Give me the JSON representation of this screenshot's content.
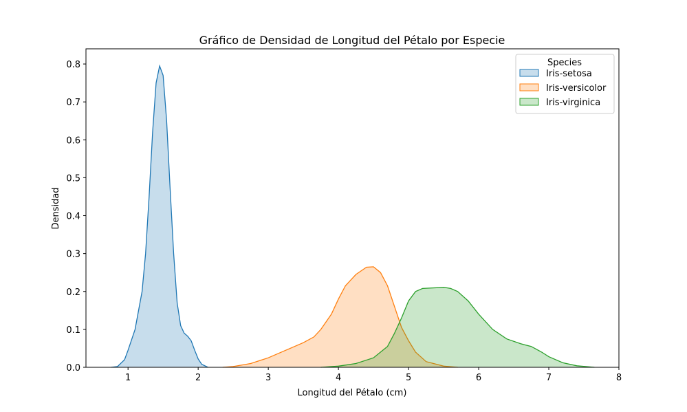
{
  "chart_data": {
    "type": "area",
    "title": "Gráfico de Densidad de Longitud del Pétalo por Especie",
    "xlabel": "Longitud del Pétalo (cm)",
    "ylabel": "Densidad",
    "xlim": [
      0.4,
      8.0
    ],
    "ylim": [
      0,
      0.84
    ],
    "xticks": [
      1,
      2,
      3,
      4,
      5,
      6,
      7,
      8
    ],
    "yticks": [
      0.0,
      0.1,
      0.2,
      0.3,
      0.4,
      0.5,
      0.6,
      0.7,
      0.8
    ],
    "xtick_labels": [
      "1",
      "2",
      "3",
      "4",
      "5",
      "6",
      "7",
      "8"
    ],
    "ytick_labels": [
      "0.0",
      "0.1",
      "0.2",
      "0.3",
      "0.4",
      "0.5",
      "0.6",
      "0.7",
      "0.8"
    ],
    "grid": false,
    "legend": {
      "title": "Species",
      "placement": "top-right"
    },
    "series": [
      {
        "name": "Iris-setosa",
        "color": "#1f77b4",
        "points": [
          [
            0.76,
            0
          ],
          [
            0.85,
            0.002
          ],
          [
            0.95,
            0.02
          ],
          [
            1.0,
            0.045
          ],
          [
            1.1,
            0.1
          ],
          [
            1.2,
            0.2
          ],
          [
            1.25,
            0.3
          ],
          [
            1.3,
            0.45
          ],
          [
            1.35,
            0.62
          ],
          [
            1.4,
            0.75
          ],
          [
            1.45,
            0.795
          ],
          [
            1.5,
            0.77
          ],
          [
            1.55,
            0.65
          ],
          [
            1.6,
            0.47
          ],
          [
            1.65,
            0.3
          ],
          [
            1.7,
            0.17
          ],
          [
            1.75,
            0.11
          ],
          [
            1.8,
            0.09
          ],
          [
            1.85,
            0.082
          ],
          [
            1.9,
            0.07
          ],
          [
            1.95,
            0.045
          ],
          [
            2.0,
            0.022
          ],
          [
            2.05,
            0.008
          ],
          [
            2.14,
            0
          ]
        ]
      },
      {
        "name": "Iris-versicolor",
        "color": "#ff7f0e",
        "points": [
          [
            2.35,
            0
          ],
          [
            2.5,
            0.002
          ],
          [
            2.75,
            0.01
          ],
          [
            3.0,
            0.025
          ],
          [
            3.25,
            0.045
          ],
          [
            3.5,
            0.065
          ],
          [
            3.65,
            0.08
          ],
          [
            3.75,
            0.1
          ],
          [
            3.9,
            0.14
          ],
          [
            4.0,
            0.18
          ],
          [
            4.1,
            0.215
          ],
          [
            4.25,
            0.245
          ],
          [
            4.4,
            0.264
          ],
          [
            4.5,
            0.265
          ],
          [
            4.6,
            0.25
          ],
          [
            4.7,
            0.215
          ],
          [
            4.8,
            0.16
          ],
          [
            4.9,
            0.105
          ],
          [
            5.0,
            0.07
          ],
          [
            5.1,
            0.04
          ],
          [
            5.25,
            0.015
          ],
          [
            5.5,
            0.003
          ],
          [
            5.7,
            0
          ]
        ]
      },
      {
        "name": "Iris-virginica",
        "color": "#2ca02c",
        "points": [
          [
            3.75,
            0
          ],
          [
            4.0,
            0.003
          ],
          [
            4.25,
            0.01
          ],
          [
            4.5,
            0.025
          ],
          [
            4.7,
            0.055
          ],
          [
            4.8,
            0.09
          ],
          [
            4.9,
            0.13
          ],
          [
            5.0,
            0.175
          ],
          [
            5.1,
            0.2
          ],
          [
            5.2,
            0.208
          ],
          [
            5.4,
            0.21
          ],
          [
            5.5,
            0.211
          ],
          [
            5.6,
            0.208
          ],
          [
            5.7,
            0.2
          ],
          [
            5.85,
            0.175
          ],
          [
            6.0,
            0.14
          ],
          [
            6.2,
            0.1
          ],
          [
            6.4,
            0.075
          ],
          [
            6.6,
            0.062
          ],
          [
            6.75,
            0.055
          ],
          [
            6.9,
            0.04
          ],
          [
            7.0,
            0.028
          ],
          [
            7.2,
            0.012
          ],
          [
            7.4,
            0.004
          ],
          [
            7.65,
            0
          ]
        ]
      }
    ]
  }
}
